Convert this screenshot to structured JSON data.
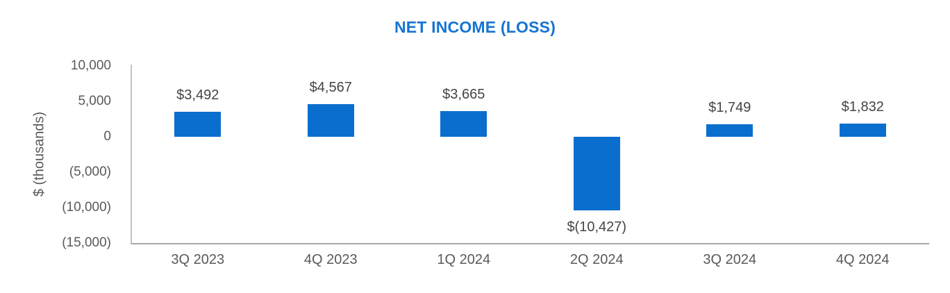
{
  "chart_data": {
    "type": "bar",
    "title": "NET INCOME (LOSS)",
    "xlabel": "",
    "ylabel": "$ (thousands)",
    "ylim": [
      -15000,
      10000
    ],
    "grid": "off",
    "legend": "none",
    "categories": [
      "3Q 2023",
      "4Q 2023",
      "1Q 2024",
      "2Q 2024",
      "3Q 2024",
      "4Q 2024"
    ],
    "values": [
      3492,
      4567,
      3665,
      -10427,
      1749,
      1832
    ],
    "data_labels": [
      "$3,492",
      "$4,567",
      "$3,665",
      "$(10,427)",
      "$1,749",
      "$1,832"
    ],
    "yticks": [
      {
        "value": 10000,
        "label": "10,000"
      },
      {
        "value": 5000,
        "label": "5,000"
      },
      {
        "value": 0,
        "label": "0"
      },
      {
        "value": -5000,
        "label": "(5,000)"
      },
      {
        "value": -10000,
        "label": "(10,000)"
      },
      {
        "value": -15000,
        "label": "(15,000)"
      }
    ],
    "colors": {
      "bar": "#0a6ece",
      "title": "#1574d4",
      "axis_text": "#595959",
      "data_label_text": "#444444",
      "axis_line": "#a6a6a6"
    }
  }
}
